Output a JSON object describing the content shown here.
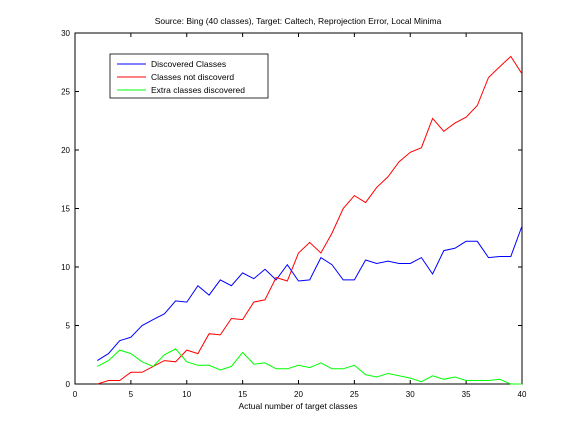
{
  "chart_data": {
    "type": "line",
    "title": "Source: Bing (40 classes), Target: Caltech, Reprojection Error, Local Minima",
    "xlabel": "Actual number of target classes",
    "ylabel": "",
    "xlim": [
      0,
      40
    ],
    "ylim": [
      0,
      30
    ],
    "xticks": [
      0,
      5,
      10,
      15,
      20,
      25,
      30,
      35,
      40
    ],
    "yticks": [
      0,
      5,
      10,
      15,
      20,
      25,
      30
    ],
    "grid": false,
    "legend_position": "top-left",
    "x": [
      2,
      3,
      4,
      5,
      6,
      7,
      8,
      9,
      10,
      11,
      12,
      13,
      14,
      15,
      16,
      17,
      18,
      19,
      20,
      21,
      22,
      23,
      24,
      25,
      26,
      27,
      28,
      29,
      30,
      31,
      32,
      33,
      34,
      35,
      36,
      37,
      38,
      39,
      40
    ],
    "series": [
      {
        "name": "Discovered Classes",
        "color": "#0000ff",
        "values": [
          2.0,
          2.6,
          3.7,
          4.0,
          5.0,
          5.5,
          6.0,
          7.1,
          7.0,
          8.4,
          7.6,
          8.9,
          8.4,
          9.5,
          9.0,
          9.8,
          8.9,
          10.2,
          8.8,
          8.9,
          10.8,
          10.2,
          8.9,
          8.9,
          10.6,
          10.3,
          10.5,
          10.3,
          10.3,
          10.8,
          9.4,
          11.4,
          11.6,
          12.2,
          12.2,
          10.8,
          10.9,
          10.9,
          13.5
        ]
      },
      {
        "name": "Classes not discoverd",
        "color": "#ff0000",
        "values": [
          0.0,
          0.3,
          0.3,
          1.0,
          1.0,
          1.5,
          2.0,
          1.9,
          2.9,
          2.6,
          4.3,
          4.2,
          5.6,
          5.5,
          7.0,
          7.2,
          9.1,
          8.8,
          11.2,
          12.1,
          11.2,
          12.9,
          15.0,
          16.1,
          15.5,
          16.8,
          17.7,
          19.0,
          19.8,
          20.2,
          22.7,
          21.6,
          22.3,
          22.8,
          23.8,
          26.2,
          27.1,
          28.0,
          26.5
        ]
      },
      {
        "name": "Extra classes discovered",
        "color": "#00ff00",
        "values": [
          1.5,
          2.0,
          2.9,
          2.6,
          1.9,
          1.5,
          2.5,
          3.0,
          1.9,
          1.6,
          1.6,
          1.2,
          1.5,
          2.7,
          1.7,
          1.8,
          1.3,
          1.3,
          1.6,
          1.4,
          1.8,
          1.3,
          1.3,
          1.6,
          0.8,
          0.6,
          0.9,
          0.7,
          0.5,
          0.2,
          0.7,
          0.4,
          0.6,
          0.3,
          0.3,
          0.3,
          0.4,
          0.0,
          0.0
        ]
      }
    ]
  }
}
